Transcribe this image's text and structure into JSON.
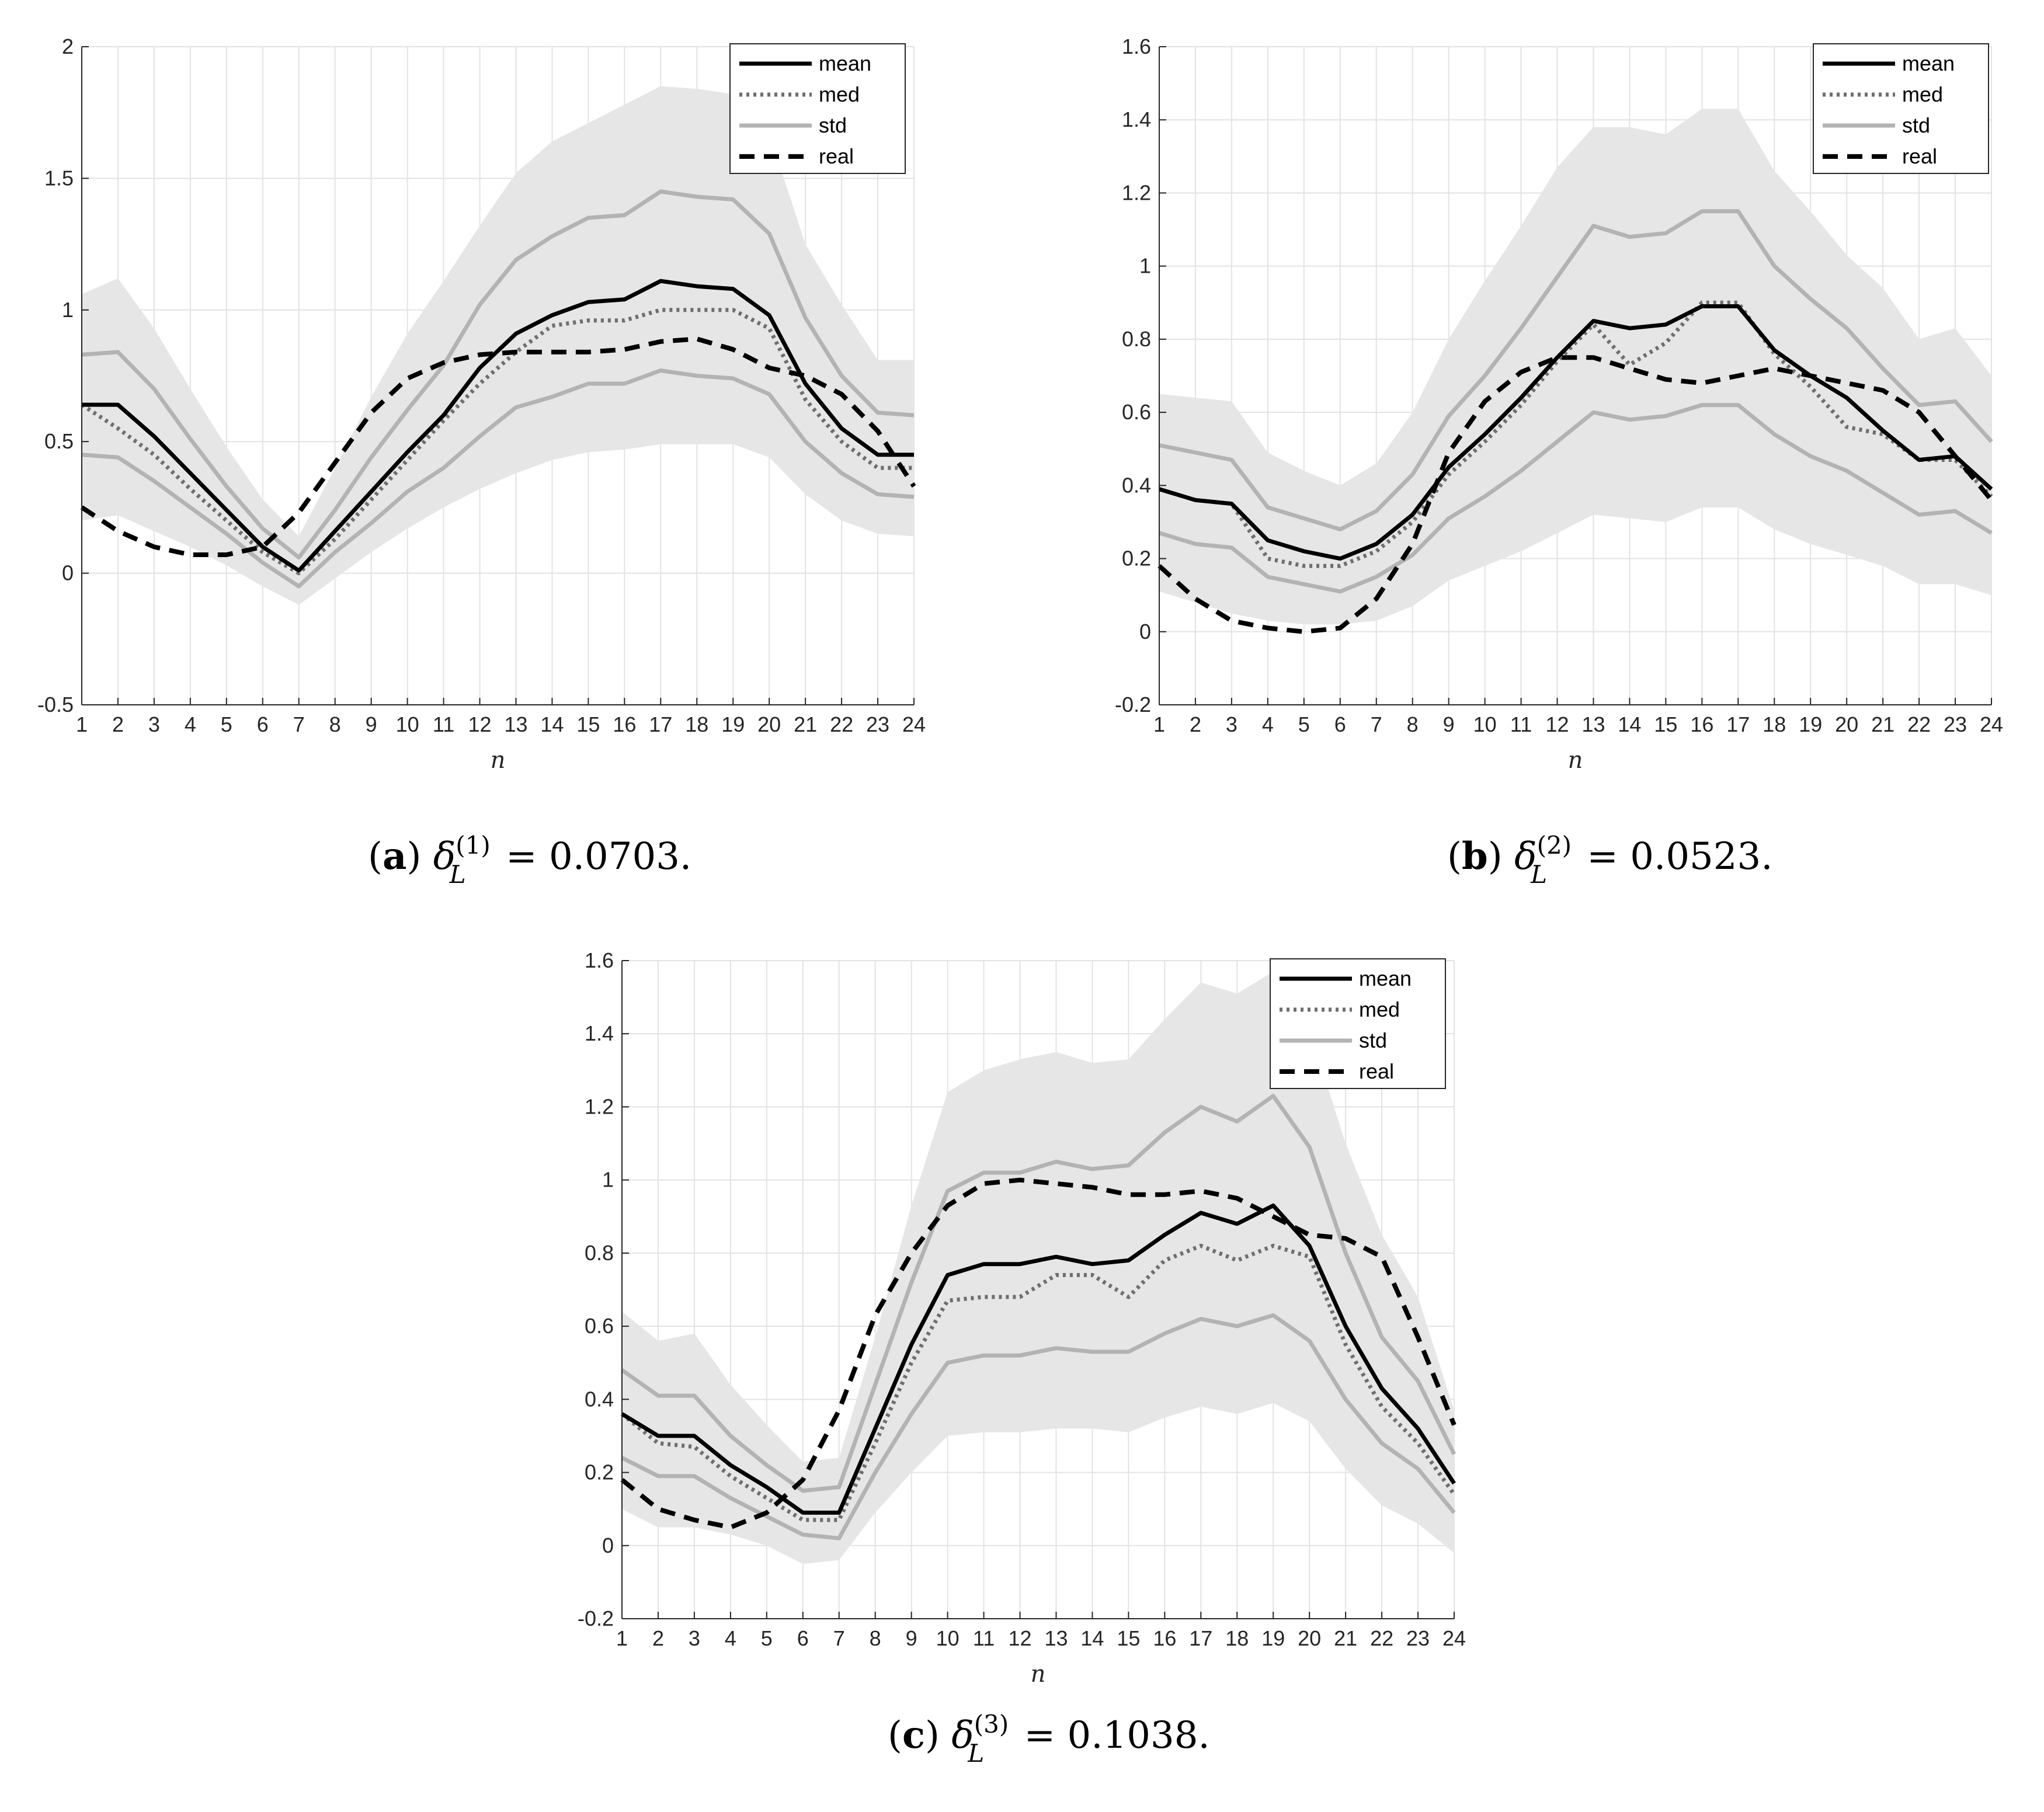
{
  "chart_data": [
    {
      "type": "line",
      "panel": "a",
      "caption": {
        "label": "a",
        "delta": "δ",
        "sub": "L",
        "sup": "(1)",
        "eq": " = ",
        "value": "0.0703."
      },
      "xlabel": "n",
      "ylabel": "",
      "x": [
        1,
        2,
        3,
        4,
        5,
        6,
        7,
        8,
        9,
        10,
        11,
        12,
        13,
        14,
        15,
        16,
        17,
        18,
        19,
        20,
        21,
        22,
        23,
        24
      ],
      "ylim": [
        -0.5,
        2
      ],
      "yticks": [
        -0.5,
        0,
        0.5,
        1,
        1.5,
        2
      ],
      "ytick_labels": [
        "-0.5",
        "0",
        "0.5",
        "1",
        "1.5",
        "2"
      ],
      "grid": true,
      "legend": {
        "position": "top-right",
        "entries": [
          "mean",
          "med",
          "std",
          "real"
        ]
      },
      "series": [
        {
          "name": "mean",
          "style": "solid-black",
          "values": [
            0.64,
            0.64,
            0.52,
            0.38,
            0.24,
            0.1,
            0.01,
            0.16,
            0.31,
            0.46,
            0.6,
            0.78,
            0.91,
            0.98,
            1.03,
            1.04,
            1.11,
            1.09,
            1.08,
            0.98,
            0.72,
            0.55,
            0.45,
            0.45
          ]
        },
        {
          "name": "med",
          "style": "dotted-gray",
          "values": [
            0.64,
            0.55,
            0.45,
            0.32,
            0.2,
            0.08,
            0.0,
            0.13,
            0.28,
            0.43,
            0.58,
            0.72,
            0.84,
            0.94,
            0.96,
            0.96,
            1.0,
            1.0,
            1.0,
            0.93,
            0.66,
            0.5,
            0.4,
            0.4
          ]
        },
        {
          "name": "std upper",
          "legend": "std",
          "style": "solid-lightgray",
          "values": [
            0.83,
            0.84,
            0.7,
            0.51,
            0.33,
            0.17,
            0.06,
            0.24,
            0.44,
            0.62,
            0.79,
            1.02,
            1.19,
            1.28,
            1.35,
            1.36,
            1.45,
            1.43,
            1.42,
            1.29,
            0.97,
            0.75,
            0.61,
            0.6
          ]
        },
        {
          "name": "std lower",
          "legend": "std",
          "style": "solid-lightgray",
          "values": [
            0.45,
            0.44,
            0.35,
            0.25,
            0.15,
            0.04,
            -0.05,
            0.08,
            0.19,
            0.31,
            0.4,
            0.52,
            0.63,
            0.67,
            0.72,
            0.72,
            0.77,
            0.75,
            0.74,
            0.68,
            0.5,
            0.38,
            0.3,
            0.29
          ]
        },
        {
          "name": "real",
          "style": "dashed-black",
          "values": [
            0.25,
            0.16,
            0.1,
            0.07,
            0.07,
            0.1,
            0.23,
            0.42,
            0.61,
            0.74,
            0.8,
            0.83,
            0.84,
            0.84,
            0.84,
            0.85,
            0.88,
            0.89,
            0.85,
            0.78,
            0.75,
            0.68,
            0.54,
            0.33
          ]
        }
      ],
      "envelope": {
        "upper": [
          1.06,
          1.12,
          0.93,
          0.7,
          0.48,
          0.28,
          0.14,
          0.4,
          0.67,
          0.91,
          1.11,
          1.32,
          1.52,
          1.64,
          1.71,
          1.78,
          1.85,
          1.84,
          1.82,
          1.67,
          1.25,
          1.02,
          0.81,
          0.81
        ],
        "lower": [
          0.2,
          0.22,
          0.16,
          0.1,
          0.03,
          -0.05,
          -0.12,
          -0.02,
          0.08,
          0.17,
          0.25,
          0.32,
          0.38,
          0.43,
          0.46,
          0.47,
          0.49,
          0.49,
          0.49,
          0.44,
          0.3,
          0.2,
          0.15,
          0.14
        ]
      }
    },
    {
      "type": "line",
      "panel": "b",
      "caption": {
        "label": "b",
        "delta": "δ",
        "sub": "L",
        "sup": "(2)",
        "eq": " = ",
        "value": "0.0523."
      },
      "xlabel": "n",
      "ylabel": "",
      "x": [
        1,
        2,
        3,
        4,
        5,
        6,
        7,
        8,
        9,
        10,
        11,
        12,
        13,
        14,
        15,
        16,
        17,
        18,
        19,
        20,
        21,
        22,
        23,
        24
      ],
      "ylim": [
        -0.2,
        1.6
      ],
      "yticks": [
        -0.2,
        0,
        0.2,
        0.4,
        0.6,
        0.8,
        1,
        1.2,
        1.4,
        1.6
      ],
      "ytick_labels": [
        "-0.2",
        "0",
        "0.2",
        "0.4",
        "0.6",
        "0.8",
        "1",
        "1.2",
        "1.4",
        "1.6"
      ],
      "grid": true,
      "legend": {
        "position": "top-right",
        "entries": [
          "mean",
          "med",
          "std",
          "real"
        ]
      },
      "series": [
        {
          "name": "mean",
          "style": "solid-black",
          "values": [
            0.39,
            0.36,
            0.35,
            0.25,
            0.22,
            0.2,
            0.24,
            0.32,
            0.45,
            0.54,
            0.64,
            0.75,
            0.85,
            0.83,
            0.84,
            0.89,
            0.89,
            0.77,
            0.7,
            0.64,
            0.55,
            0.47,
            0.48,
            0.39
          ]
        },
        {
          "name": "med",
          "style": "dotted-gray",
          "values": [
            0.39,
            0.36,
            0.35,
            0.2,
            0.18,
            0.18,
            0.22,
            0.3,
            0.43,
            0.52,
            0.62,
            0.74,
            0.84,
            0.73,
            0.79,
            0.9,
            0.9,
            0.76,
            0.67,
            0.56,
            0.54,
            0.47,
            0.47,
            0.37
          ]
        },
        {
          "name": "std upper",
          "legend": "std",
          "style": "solid-lightgray",
          "values": [
            0.51,
            0.49,
            0.47,
            0.34,
            0.31,
            0.28,
            0.33,
            0.43,
            0.59,
            0.7,
            0.83,
            0.97,
            1.11,
            1.08,
            1.09,
            1.15,
            1.15,
            1.0,
            0.91,
            0.83,
            0.72,
            0.62,
            0.63,
            0.52
          ]
        },
        {
          "name": "std lower",
          "legend": "std",
          "style": "solid-lightgray",
          "values": [
            0.27,
            0.24,
            0.23,
            0.15,
            0.13,
            0.11,
            0.15,
            0.21,
            0.31,
            0.37,
            0.44,
            0.52,
            0.6,
            0.58,
            0.59,
            0.62,
            0.62,
            0.54,
            0.48,
            0.44,
            0.38,
            0.32,
            0.33,
            0.27
          ]
        },
        {
          "name": "real",
          "style": "dashed-black",
          "values": [
            0.18,
            0.09,
            0.03,
            0.01,
            0.0,
            0.01,
            0.09,
            0.24,
            0.49,
            0.63,
            0.71,
            0.75,
            0.75,
            0.72,
            0.69,
            0.68,
            0.7,
            0.72,
            0.7,
            0.68,
            0.66,
            0.6,
            0.48,
            0.36
          ]
        }
      ],
      "envelope": {
        "upper": [
          0.65,
          0.64,
          0.63,
          0.49,
          0.44,
          0.4,
          0.46,
          0.6,
          0.8,
          0.96,
          1.11,
          1.27,
          1.38,
          1.38,
          1.36,
          1.43,
          1.43,
          1.26,
          1.15,
          1.03,
          0.94,
          0.8,
          0.83,
          0.7
        ],
        "lower": [
          0.11,
          0.08,
          0.05,
          0.03,
          0.02,
          0.02,
          0.03,
          0.07,
          0.14,
          0.18,
          0.22,
          0.27,
          0.32,
          0.31,
          0.3,
          0.34,
          0.34,
          0.28,
          0.24,
          0.21,
          0.18,
          0.13,
          0.13,
          0.1
        ]
      }
    },
    {
      "type": "line",
      "panel": "c",
      "caption": {
        "label": "c",
        "delta": "δ",
        "sub": "L",
        "sup": "(3)",
        "eq": " = ",
        "value": "0.1038."
      },
      "xlabel": "n",
      "ylabel": "",
      "x": [
        1,
        2,
        3,
        4,
        5,
        6,
        7,
        8,
        9,
        10,
        11,
        12,
        13,
        14,
        15,
        16,
        17,
        18,
        19,
        20,
        21,
        22,
        23,
        24
      ],
      "ylim": [
        -0.2,
        1.6
      ],
      "yticks": [
        -0.2,
        0,
        0.2,
        0.4,
        0.6,
        0.8,
        1,
        1.2,
        1.4,
        1.6
      ],
      "ytick_labels": [
        "-0.2",
        "0",
        "0.2",
        "0.4",
        "0.6",
        "0.8",
        "1",
        "1.2",
        "1.4",
        "1.6"
      ],
      "grid": true,
      "legend": {
        "position": "top-right",
        "entries": [
          "mean",
          "med",
          "std",
          "real"
        ]
      },
      "series": [
        {
          "name": "mean",
          "style": "solid-black",
          "values": [
            0.36,
            0.3,
            0.3,
            0.22,
            0.16,
            0.09,
            0.09,
            0.32,
            0.55,
            0.74,
            0.77,
            0.77,
            0.79,
            0.77,
            0.78,
            0.85,
            0.91,
            0.88,
            0.93,
            0.82,
            0.6,
            0.43,
            0.32,
            0.17
          ]
        },
        {
          "name": "med",
          "style": "dotted-gray",
          "values": [
            0.36,
            0.28,
            0.27,
            0.19,
            0.13,
            0.07,
            0.07,
            0.28,
            0.5,
            0.67,
            0.68,
            0.68,
            0.74,
            0.74,
            0.68,
            0.78,
            0.82,
            0.78,
            0.82,
            0.79,
            0.55,
            0.38,
            0.28,
            0.14
          ]
        },
        {
          "name": "std upper",
          "legend": "std",
          "style": "solid-lightgray",
          "values": [
            0.48,
            0.41,
            0.41,
            0.3,
            0.22,
            0.15,
            0.16,
            0.44,
            0.72,
            0.97,
            1.02,
            1.02,
            1.05,
            1.03,
            1.04,
            1.13,
            1.2,
            1.16,
            1.23,
            1.09,
            0.8,
            0.57,
            0.45,
            0.25
          ]
        },
        {
          "name": "std lower",
          "legend": "std",
          "style": "solid-lightgray",
          "values": [
            0.24,
            0.19,
            0.19,
            0.13,
            0.08,
            0.03,
            0.02,
            0.2,
            0.36,
            0.5,
            0.52,
            0.52,
            0.54,
            0.53,
            0.53,
            0.58,
            0.62,
            0.6,
            0.63,
            0.56,
            0.4,
            0.28,
            0.21,
            0.09
          ]
        },
        {
          "name": "real",
          "style": "dashed-black",
          "values": [
            0.18,
            0.1,
            0.07,
            0.05,
            0.09,
            0.18,
            0.37,
            0.63,
            0.8,
            0.93,
            0.99,
            1.0,
            0.99,
            0.98,
            0.96,
            0.96,
            0.97,
            0.95,
            0.9,
            0.85,
            0.84,
            0.79,
            0.57,
            0.33
          ]
        }
      ],
      "envelope": {
        "upper": [
          0.64,
          0.56,
          0.58,
          0.44,
          0.33,
          0.23,
          0.24,
          0.57,
          0.93,
          1.24,
          1.3,
          1.33,
          1.35,
          1.32,
          1.33,
          1.44,
          1.54,
          1.51,
          1.57,
          1.41,
          1.1,
          0.85,
          0.68,
          0.37
        ],
        "lower": [
          0.1,
          0.05,
          0.05,
          0.03,
          0.0,
          -0.05,
          -0.04,
          0.09,
          0.2,
          0.3,
          0.31,
          0.31,
          0.32,
          0.32,
          0.31,
          0.35,
          0.38,
          0.36,
          0.39,
          0.34,
          0.21,
          0.11,
          0.06,
          -0.02
        ]
      }
    }
  ]
}
